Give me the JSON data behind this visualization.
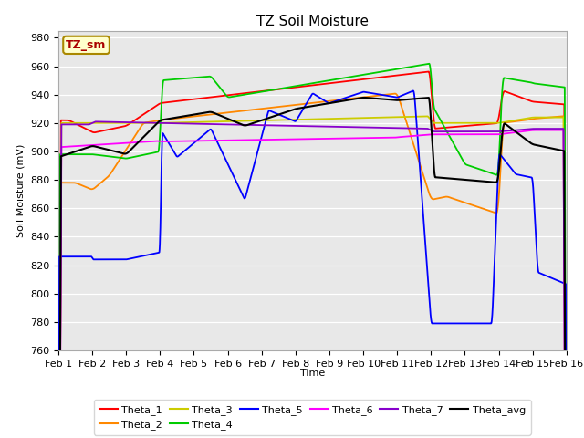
{
  "title": "TZ Soil Moisture",
  "ylabel": "Soil Moisture (mV)",
  "xlabel": "Time",
  "legend_title": "TZ_sm",
  "ylim": [
    760,
    985
  ],
  "yticks": [
    760,
    780,
    800,
    820,
    840,
    860,
    880,
    900,
    920,
    940,
    960,
    980
  ],
  "x_labels": [
    "Feb 1",
    "Feb 2",
    "Feb 3",
    "Feb 4",
    "Feb 5",
    "Feb 6",
    "Feb 7",
    "Feb 8",
    "Feb 9",
    "Feb 10",
    "Feb 11",
    "Feb 12",
    "Feb 13",
    "Feb 14",
    "Feb 15",
    "Feb 16"
  ],
  "colors": {
    "Theta_1": "#ff0000",
    "Theta_2": "#ff8800",
    "Theta_3": "#cccc00",
    "Theta_4": "#00cc00",
    "Theta_5": "#0000ff",
    "Theta_6": "#ff00ff",
    "Theta_7": "#8800cc",
    "Theta_avg": "#000000"
  },
  "fig_bg": "#ffffff",
  "plot_bg": "#e8e8e8",
  "grid_color": "#ffffff",
  "title_fontsize": 11,
  "axis_fontsize": 8,
  "tick_fontsize": 8
}
